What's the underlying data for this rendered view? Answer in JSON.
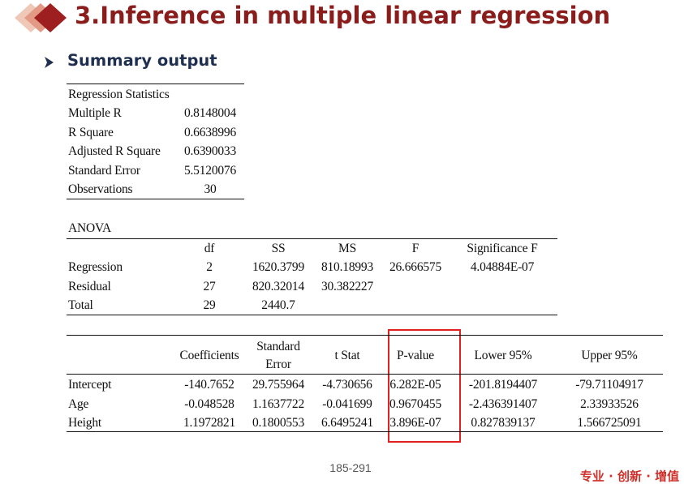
{
  "header": {
    "title": "3.Inference in multiple linear regression",
    "subtitle": "Summary output"
  },
  "regression_statistics": {
    "title": "Regression Statistics",
    "rows": [
      [
        "Multiple R",
        "0.8148004"
      ],
      [
        "R Square",
        "0.6638996"
      ],
      [
        "Adjusted R Square",
        "0.6390033"
      ],
      [
        "Standard Error",
        "5.5120076"
      ],
      [
        "Observations",
        "30"
      ]
    ]
  },
  "anova": {
    "title": "ANOVA",
    "columns": [
      "df",
      "SS",
      "MS",
      "F",
      "Significance F"
    ],
    "rows": [
      [
        "Regression",
        "2",
        "1620.3799",
        "810.18993",
        "26.666575",
        "4.04884E-07"
      ],
      [
        "Residual",
        "27",
        "820.32014",
        "30.382227"
      ],
      [
        "Total",
        "29",
        "2440.7"
      ]
    ]
  },
  "coefficients": {
    "columns": [
      "Coefficients",
      "Standard Error",
      "t Stat",
      "P-value",
      "Lower 95%",
      "Upper 95%"
    ],
    "rows": [
      [
        "Intercept",
        "-140.7652",
        "29.755964",
        "-4.730656",
        "6.282E-05",
        "-201.8194407",
        "-79.71104917"
      ],
      [
        "Age",
        "-0.048528",
        "1.1637722",
        "-0.041699",
        "0.9670455",
        "-2.436391407",
        "2.33933526"
      ],
      [
        "Height",
        "1.1972821",
        "0.1800553",
        "6.6495241",
        "3.896E-07",
        "0.827839137",
        "1.566725091"
      ]
    ]
  },
  "footer": {
    "page": "185-291",
    "motto": "专业 · 创新 · 增值"
  }
}
